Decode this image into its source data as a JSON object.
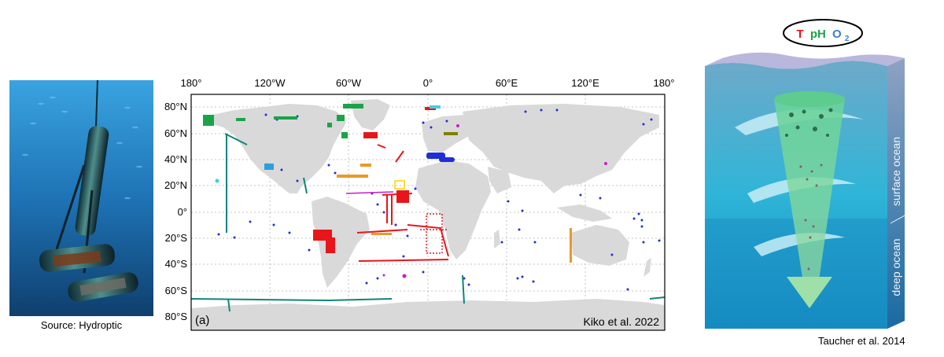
{
  "left_panel": {
    "caption": "Source: Hydroptic"
  },
  "map": {
    "lon_labels": [
      "180°",
      "120°W",
      "60°W",
      "0°",
      "60°E",
      "120°E",
      "180°"
    ],
    "lat_labels": [
      "80°N",
      "60°N",
      "40°N",
      "20°N",
      "0°",
      "20°S",
      "40°S",
      "60°S",
      "80°S"
    ],
    "panel_label": "(a)",
    "credit": "Kiko et al. 2022",
    "land_color": "#d9d9d9",
    "series_colors": [
      "#1f2fd6",
      "#e8151b",
      "#1ba34a",
      "#12847a",
      "#e89a28",
      "#c81ec8",
      "#3fd0e0",
      "#ffd200",
      "#7f7f00",
      "#2aa0e0"
    ]
  },
  "right_panel": {
    "bubble": {
      "t": "T",
      "ph": "pH",
      "o": "O",
      "o_sub": "2"
    },
    "surface_label": "surface ocean",
    "deep_label": "deep ocean",
    "caption": "Taucher et al. 2014"
  }
}
